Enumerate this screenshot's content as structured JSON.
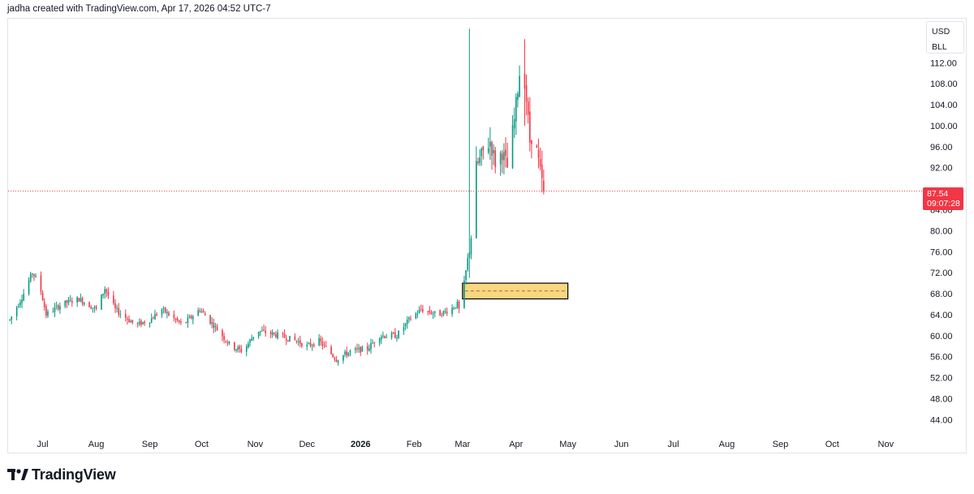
{
  "header": {
    "caption": "jadha created with TradingView.com, Apr 17, 2026 04:52 UTC-7"
  },
  "currency": {
    "unit": "USD",
    "ticker": "BLL"
  },
  "last_price": {
    "price": "87.54",
    "countdown": "09:07:28"
  },
  "footer": {
    "brand": "TradingView"
  },
  "colors": {
    "up": "#089981",
    "down": "#f23645",
    "zone_fill": "#f9d67f",
    "zone_border": "#000000",
    "price_line": "#f23645"
  },
  "chart_data": {
    "type": "candlestick",
    "title": "",
    "x_ticks": [
      {
        "label": "Jul",
        "date": "2025-07-01",
        "bold": false
      },
      {
        "label": "Aug",
        "date": "2025-08-01",
        "bold": false
      },
      {
        "label": "Sep",
        "date": "2025-09-01",
        "bold": false
      },
      {
        "label": "Oct",
        "date": "2025-10-01",
        "bold": false
      },
      {
        "label": "Nov",
        "date": "2025-11-01",
        "bold": false
      },
      {
        "label": "Dec",
        "date": "2025-12-01",
        "bold": false
      },
      {
        "label": "2026",
        "date": "2026-01-01",
        "bold": true
      },
      {
        "label": "Feb",
        "date": "2026-02-01",
        "bold": false
      },
      {
        "label": "Mar",
        "date": "2026-03-01",
        "bold": false
      },
      {
        "label": "Apr",
        "date": "2026-04-01",
        "bold": false
      },
      {
        "label": "May",
        "date": "2026-05-01",
        "bold": false
      },
      {
        "label": "Jun",
        "date": "2026-06-01",
        "bold": false
      },
      {
        "label": "Jul",
        "date": "2026-07-01",
        "bold": false
      },
      {
        "label": "Aug",
        "date": "2026-08-01",
        "bold": false
      },
      {
        "label": "Sep",
        "date": "2026-09-01",
        "bold": false
      },
      {
        "label": "Oct",
        "date": "2026-10-01",
        "bold": false
      },
      {
        "label": "Nov",
        "date": "2026-11-01",
        "bold": false
      }
    ],
    "y_ticks": [
      "112.00",
      "108.00",
      "104.00",
      "100.00",
      "96.00",
      "92.00",
      "84.00",
      "80.00",
      "76.00",
      "72.00",
      "68.00",
      "64.00",
      "60.00",
      "56.00",
      "52.00",
      "48.00",
      "44.00"
    ],
    "y_range": [
      40.8,
      120.4
    ],
    "x_range": [
      "2025-06-11",
      "2026-11-22"
    ],
    "last_price": 87.54,
    "zone": {
      "from_date": "2026-03-01",
      "to_date": "2026-05-01",
      "low": 67.0,
      "high": 70.0,
      "mid": 68.5
    },
    "price_waypoints": [
      [
        "2025-06-12",
        63
      ],
      [
        "2025-06-20",
        68
      ],
      [
        "2025-06-25",
        72
      ],
      [
        "2025-06-29",
        70
      ],
      [
        "2025-07-03",
        64
      ],
      [
        "2025-07-12",
        66
      ],
      [
        "2025-07-22",
        67
      ],
      [
        "2025-08-01",
        65
      ],
      [
        "2025-08-06",
        69
      ],
      [
        "2025-08-12",
        65
      ],
      [
        "2025-08-24",
        62
      ],
      [
        "2025-09-01",
        63
      ],
      [
        "2025-09-08",
        65
      ],
      [
        "2025-09-20",
        62
      ],
      [
        "2025-09-30",
        65
      ],
      [
        "2025-10-08",
        62
      ],
      [
        "2025-10-18",
        58
      ],
      [
        "2025-10-25",
        57
      ],
      [
        "2025-11-02",
        61
      ],
      [
        "2025-11-15",
        60
      ],
      [
        "2025-11-25",
        59
      ],
      [
        "2025-12-01",
        58
      ],
      [
        "2025-12-08",
        59
      ],
      [
        "2025-12-18",
        55.5
      ],
      [
        "2025-12-26",
        57
      ],
      [
        "2026-01-05",
        57.5
      ],
      [
        "2026-01-12",
        60
      ],
      [
        "2026-01-22",
        60
      ],
      [
        "2026-01-29",
        63
      ],
      [
        "2026-02-05",
        65
      ],
      [
        "2026-02-15",
        64
      ],
      [
        "2026-02-22",
        65
      ],
      [
        "2026-02-26",
        66
      ],
      [
        "2026-02-28",
        64
      ],
      [
        "2026-03-02",
        70
      ],
      [
        "2026-03-06",
        79
      ],
      [
        "2026-03-09",
        92
      ],
      [
        "2026-03-13",
        95
      ],
      [
        "2026-03-17",
        97
      ],
      [
        "2026-03-20",
        93
      ],
      [
        "2026-03-24",
        95
      ],
      [
        "2026-03-27",
        92
      ],
      [
        "2026-03-31",
        101
      ],
      [
        "2026-04-03",
        110
      ],
      [
        "2026-04-05",
        112
      ],
      [
        "2026-04-07",
        105
      ],
      [
        "2026-04-09",
        97
      ],
      [
        "2026-04-11",
        99
      ],
      [
        "2026-04-13",
        95
      ],
      [
        "2026-04-15",
        91
      ],
      [
        "2026-04-17",
        87.54
      ]
    ],
    "spikes": [
      [
        "2026-03-05",
        118.5,
        71
      ],
      [
        "2026-04-06",
        116.5,
        100
      ]
    ]
  }
}
